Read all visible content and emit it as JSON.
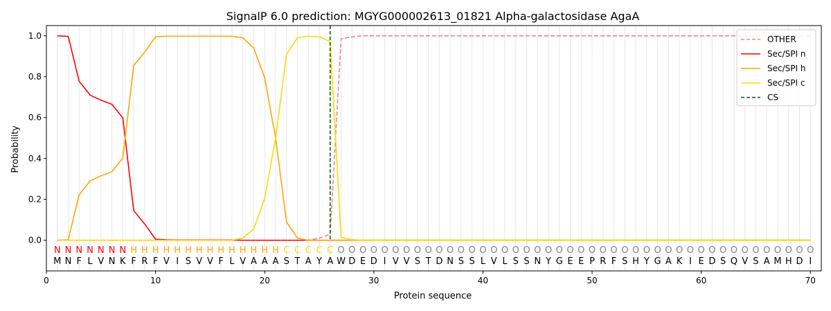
{
  "chart_data": {
    "type": "line",
    "title": "SignalP 6.0 prediction: MGYG000002613_01821 Alpha-galactosidase AgaA",
    "xlabel": "Protein sequence",
    "ylabel": "Probability",
    "xlim": [
      0,
      71
    ],
    "ylim": [
      -0.15,
      1.05
    ],
    "x_ticks": [
      0,
      10,
      20,
      30,
      40,
      50,
      60,
      70
    ],
    "y_ticks": [
      0.0,
      0.2,
      0.4,
      0.6,
      0.8,
      1.0
    ],
    "x_tick_labels": [
      "0",
      "10",
      "20",
      "30",
      "40",
      "50",
      "60",
      "70"
    ],
    "y_tick_labels": [
      "0.0",
      "0.2",
      "0.4",
      "0.6",
      "0.8",
      "1.0"
    ],
    "grid": "vertical lines at every residue",
    "legend_position": "top-right",
    "sequence": [
      "M",
      "N",
      "F",
      "L",
      "V",
      "N",
      "K",
      "F",
      "R",
      "F",
      "V",
      "I",
      "S",
      "V",
      "V",
      "F",
      "L",
      "V",
      "A",
      "A",
      "A",
      "S",
      "T",
      "A",
      "Y",
      "A",
      "W",
      "D",
      "E",
      "D",
      "I",
      "V",
      "V",
      "S",
      "T",
      "D",
      "N",
      "S",
      "S",
      "L",
      "V",
      "L",
      "S",
      "S",
      "N",
      "Y",
      "G",
      "E",
      "E",
      "P",
      "R",
      "F",
      "S",
      "H",
      "Y",
      "G",
      "A",
      "K",
      "I",
      "E",
      "D",
      "S",
      "Q",
      "V",
      "S",
      "A",
      "M",
      "H",
      "D",
      "I"
    ],
    "labels": [
      "N",
      "N",
      "N",
      "N",
      "N",
      "N",
      "N",
      "H",
      "H",
      "H",
      "H",
      "H",
      "H",
      "H",
      "H",
      "H",
      "H",
      "H",
      "H",
      "H",
      "H",
      "C",
      "C",
      "C",
      "C",
      "C",
      "O",
      "O",
      "O",
      "O",
      "O",
      "O",
      "O",
      "O",
      "O",
      "O",
      "O",
      "O",
      "O",
      "O",
      "O",
      "O",
      "O",
      "O",
      "O",
      "O",
      "O",
      "O",
      "O",
      "O",
      "O",
      "O",
      "O",
      "O",
      "O",
      "O",
      "O",
      "O",
      "O",
      "O",
      "O",
      "O",
      "O",
      "O",
      "O",
      "O",
      "O",
      "O",
      "O",
      "O"
    ],
    "label_colors": {
      "N": "#ff0000",
      "H": "#ffa500",
      "C": "#ffd700",
      "O": "#808080"
    },
    "cleavage_site": 26,
    "series": [
      {
        "name": "OTHER",
        "color": "#f08080",
        "dash": "dashed",
        "values": [
          0,
          0,
          0,
          0,
          0,
          0,
          0,
          0,
          0,
          0,
          0,
          0,
          0,
          0,
          0,
          0,
          0,
          0,
          0,
          0,
          0,
          0,
          0,
          0,
          0.01,
          0.03,
          0.985,
          0.995,
          1,
          1,
          1,
          1,
          1,
          1,
          1,
          1,
          1,
          1,
          1,
          1,
          1,
          1,
          1,
          1,
          1,
          1,
          1,
          1,
          1,
          1,
          1,
          1,
          1,
          1,
          1,
          1,
          1,
          1,
          1,
          1,
          1,
          1,
          1,
          1,
          1,
          1,
          1,
          1,
          1,
          1
        ]
      },
      {
        "name": "Sec/SPI n",
        "color": "#ff0000",
        "dash": "solid",
        "values": [
          1.0,
          0.997,
          0.778,
          0.71,
          0.685,
          0.665,
          0.598,
          0.145,
          0.08,
          0.005,
          0.002,
          0.001,
          0.001,
          0.001,
          0.001,
          0.001,
          0.001,
          0,
          0,
          0,
          0,
          0,
          0,
          0,
          0,
          0,
          0,
          0,
          0,
          0,
          0,
          0,
          0,
          0,
          0,
          0,
          0,
          0,
          0,
          0,
          0,
          0,
          0,
          0,
          0,
          0,
          0,
          0,
          0,
          0,
          0,
          0,
          0,
          0,
          0,
          0,
          0,
          0,
          0,
          0,
          0,
          0,
          0,
          0,
          0,
          0,
          0,
          0,
          0,
          0
        ]
      },
      {
        "name": "Sec/SPI h",
        "color": "#ffa500",
        "dash": "solid",
        "values": [
          0,
          0.003,
          0.222,
          0.29,
          0.315,
          0.335,
          0.402,
          0.855,
          0.92,
          0.995,
          0.998,
          0.998,
          0.998,
          0.998,
          0.998,
          0.998,
          0.998,
          0.99,
          0.94,
          0.795,
          0.5,
          0.09,
          0.01,
          0,
          0,
          0,
          0,
          0,
          0,
          0,
          0,
          0,
          0,
          0,
          0,
          0,
          0,
          0,
          0,
          0,
          0,
          0,
          0,
          0,
          0,
          0,
          0,
          0,
          0,
          0,
          0,
          0,
          0,
          0,
          0,
          0,
          0,
          0,
          0,
          0,
          0,
          0,
          0,
          0,
          0,
          0,
          0,
          0,
          0,
          0
        ]
      },
      {
        "name": "Sec/SPI c",
        "color": "#ffd700",
        "dash": "solid",
        "values": [
          0,
          0,
          0,
          0,
          0,
          0,
          0,
          0,
          0,
          0,
          0,
          0,
          0,
          0,
          0,
          0,
          0,
          0.01,
          0.055,
          0.205,
          0.5,
          0.91,
          0.99,
          0.998,
          0.995,
          0.972,
          0.015,
          0.003,
          0,
          0,
          0,
          0,
          0,
          0,
          0,
          0,
          0,
          0,
          0,
          0,
          0,
          0,
          0,
          0,
          0,
          0,
          0,
          0,
          0,
          0,
          0,
          0,
          0,
          0,
          0,
          0,
          0,
          0,
          0,
          0,
          0,
          0,
          0,
          0,
          0,
          0,
          0,
          0,
          0,
          0
        ]
      }
    ],
    "cs_series": {
      "name": "CS",
      "color": "#006400",
      "dash": "dashed"
    }
  }
}
